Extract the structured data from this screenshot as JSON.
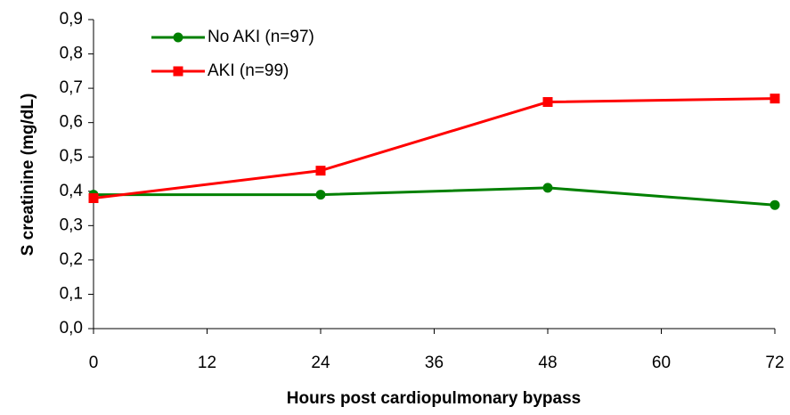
{
  "chart_data": {
    "type": "line",
    "xlabel": "Hours post cardiopulmonary bypass",
    "ylabel": "S creatinine (mg/dL)",
    "x": [
      0,
      24,
      48,
      72
    ],
    "series": [
      {
        "name": "No AKI (n=97)",
        "color": "#008000",
        "marker": "circle",
        "values": [
          0.39,
          0.39,
          0.41,
          0.36
        ]
      },
      {
        "name": "AKI (n=99)",
        "color": "#ff0000",
        "marker": "square",
        "values": [
          0.38,
          0.46,
          0.66,
          0.67
        ]
      }
    ],
    "xlim": [
      0,
      72
    ],
    "xticks": [
      0,
      12,
      24,
      36,
      48,
      60,
      72
    ],
    "ylim": [
      0,
      0.9
    ],
    "yticks": [
      {
        "value": 0,
        "label": "0,0"
      },
      {
        "value": 0.1,
        "label": "0,1"
      },
      {
        "value": 0.2,
        "label": "0,2"
      },
      {
        "value": 0.3,
        "label": "0,3"
      },
      {
        "value": 0.4,
        "label": "0,4"
      },
      {
        "value": 0.5,
        "label": "0,5"
      },
      {
        "value": 0.6,
        "label": "0,6"
      },
      {
        "value": 0.7,
        "label": "0,7"
      },
      {
        "value": 0.8,
        "label": "0,8"
      },
      {
        "value": 0.9,
        "label": "0,9"
      }
    ],
    "grid": false,
    "legend": "upper left"
  }
}
